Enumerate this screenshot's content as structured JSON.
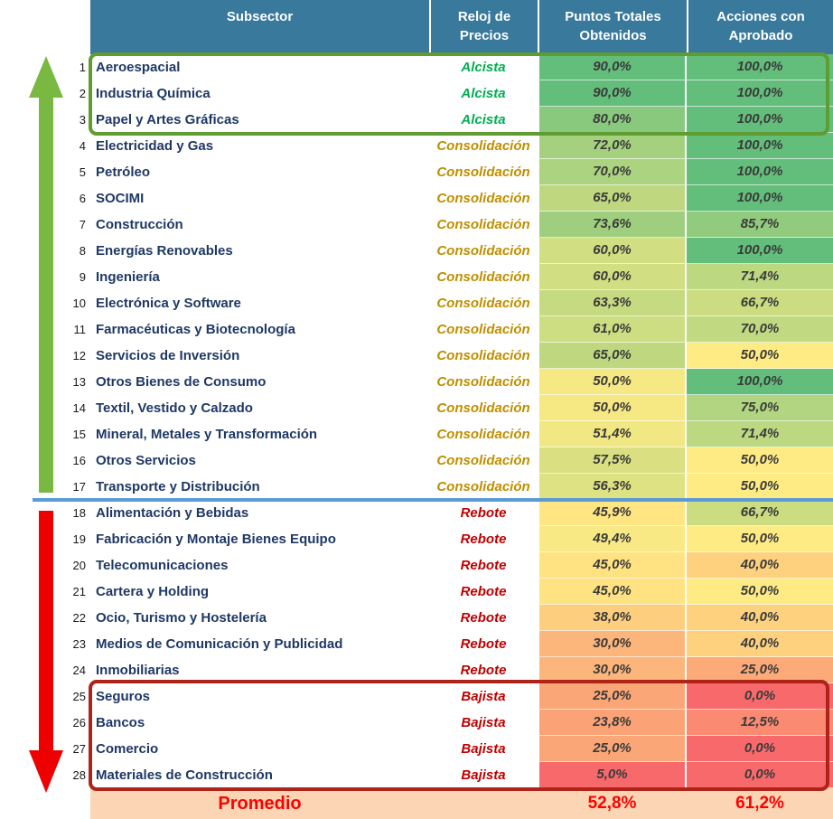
{
  "chart_data": {
    "type": "table",
    "columns": [
      "Subsector",
      "Reloj de Precios",
      "Puntos Totales Obtenidos",
      "Acciones con Aprobado"
    ],
    "rows": [
      {
        "n": 1,
        "name": "Aeroespacial",
        "reloj": "Alcista",
        "puntos": "90,0%",
        "puntos_num": 90.0,
        "acciones": "100,0%",
        "acciones_num": 100.0
      },
      {
        "n": 2,
        "name": "Industria Química",
        "reloj": "Alcista",
        "puntos": "90,0%",
        "puntos_num": 90.0,
        "acciones": "100,0%",
        "acciones_num": 100.0
      },
      {
        "n": 3,
        "name": "Papel y Artes Gráficas",
        "reloj": "Alcista",
        "puntos": "80,0%",
        "puntos_num": 80.0,
        "acciones": "100,0%",
        "acciones_num": 100.0
      },
      {
        "n": 4,
        "name": "Electricidad y Gas",
        "reloj": "Consolidación",
        "puntos": "72,0%",
        "puntos_num": 72.0,
        "acciones": "100,0%",
        "acciones_num": 100.0
      },
      {
        "n": 5,
        "name": "Petróleo",
        "reloj": "Consolidación",
        "puntos": "70,0%",
        "puntos_num": 70.0,
        "acciones": "100,0%",
        "acciones_num": 100.0
      },
      {
        "n": 6,
        "name": "SOCIMI",
        "reloj": "Consolidación",
        "puntos": "65,0%",
        "puntos_num": 65.0,
        "acciones": "100,0%",
        "acciones_num": 100.0
      },
      {
        "n": 7,
        "name": "Construcción",
        "reloj": "Consolidación",
        "puntos": "73,6%",
        "puntos_num": 73.6,
        "acciones": "85,7%",
        "acciones_num": 85.7
      },
      {
        "n": 8,
        "name": "Energías Renovables",
        "reloj": "Consolidación",
        "puntos": "60,0%",
        "puntos_num": 60.0,
        "acciones": "100,0%",
        "acciones_num": 100.0
      },
      {
        "n": 9,
        "name": "Ingeniería",
        "reloj": "Consolidación",
        "puntos": "60,0%",
        "puntos_num": 60.0,
        "acciones": "71,4%",
        "acciones_num": 71.4
      },
      {
        "n": 10,
        "name": "Electrónica y Software",
        "reloj": "Consolidación",
        "puntos": "63,3%",
        "puntos_num": 63.3,
        "acciones": "66,7%",
        "acciones_num": 66.7
      },
      {
        "n": 11,
        "name": "Farmacéuticas y Biotecnología",
        "reloj": "Consolidación",
        "puntos": "61,0%",
        "puntos_num": 61.0,
        "acciones": "70,0%",
        "acciones_num": 70.0
      },
      {
        "n": 12,
        "name": "Servicios de Inversión",
        "reloj": "Consolidación",
        "puntos": "65,0%",
        "puntos_num": 65.0,
        "acciones": "50,0%",
        "acciones_num": 50.0
      },
      {
        "n": 13,
        "name": "Otros Bienes de Consumo",
        "reloj": "Consolidación",
        "puntos": "50,0%",
        "puntos_num": 50.0,
        "acciones": "100,0%",
        "acciones_num": 100.0
      },
      {
        "n": 14,
        "name": "Textil, Vestido y Calzado",
        "reloj": "Consolidación",
        "puntos": "50,0%",
        "puntos_num": 50.0,
        "acciones": "75,0%",
        "acciones_num": 75.0
      },
      {
        "n": 15,
        "name": "Mineral, Metales y Transformación",
        "reloj": "Consolidación",
        "puntos": "51,4%",
        "puntos_num": 51.4,
        "acciones": "71,4%",
        "acciones_num": 71.4
      },
      {
        "n": 16,
        "name": "Otros Servicios",
        "reloj": "Consolidación",
        "puntos": "57,5%",
        "puntos_num": 57.5,
        "acciones": "50,0%",
        "acciones_num": 50.0
      },
      {
        "n": 17,
        "name": "Transporte y Distribución",
        "reloj": "Consolidación",
        "puntos": "56,3%",
        "puntos_num": 56.3,
        "acciones": "50,0%",
        "acciones_num": 50.0
      },
      {
        "n": 18,
        "name": "Alimentación y Bebidas",
        "reloj": "Rebote",
        "puntos": "45,9%",
        "puntos_num": 45.9,
        "acciones": "66,7%",
        "acciones_num": 66.7
      },
      {
        "n": 19,
        "name": "Fabricación y Montaje Bienes Equipo",
        "reloj": "Rebote",
        "puntos": "49,4%",
        "puntos_num": 49.4,
        "acciones": "50,0%",
        "acciones_num": 50.0
      },
      {
        "n": 20,
        "name": "Telecomunicaciones",
        "reloj": "Rebote",
        "puntos": "45,0%",
        "puntos_num": 45.0,
        "acciones": "40,0%",
        "acciones_num": 40.0
      },
      {
        "n": 21,
        "name": "Cartera y Holding",
        "reloj": "Rebote",
        "puntos": "45,0%",
        "puntos_num": 45.0,
        "acciones": "50,0%",
        "acciones_num": 50.0
      },
      {
        "n": 22,
        "name": "Ocio, Turismo y Hostelería",
        "reloj": "Rebote",
        "puntos": "38,0%",
        "puntos_num": 38.0,
        "acciones": "40,0%",
        "acciones_num": 40.0
      },
      {
        "n": 23,
        "name": "Medios de Comunicación y Publicidad",
        "reloj": "Rebote",
        "puntos": "30,0%",
        "puntos_num": 30.0,
        "acciones": "40,0%",
        "acciones_num": 40.0
      },
      {
        "n": 24,
        "name": "Inmobiliarias",
        "reloj": "Rebote",
        "puntos": "30,0%",
        "puntos_num": 30.0,
        "acciones": "25,0%",
        "acciones_num": 25.0
      },
      {
        "n": 25,
        "name": "Seguros",
        "reloj": "Bajista",
        "puntos": "25,0%",
        "puntos_num": 25.0,
        "acciones": "0,0%",
        "acciones_num": 0.0
      },
      {
        "n": 26,
        "name": "Bancos",
        "reloj": "Bajista",
        "puntos": "23,8%",
        "puntos_num": 23.8,
        "acciones": "12,5%",
        "acciones_num": 12.5
      },
      {
        "n": 27,
        "name": "Comercio",
        "reloj": "Bajista",
        "puntos": "25,0%",
        "puntos_num": 25.0,
        "acciones": "0,0%",
        "acciones_num": 0.0
      },
      {
        "n": 28,
        "name": "Materiales de Construcción",
        "reloj": "Bajista",
        "puntos": "5,0%",
        "puntos_num": 5.0,
        "acciones": "0,0%",
        "acciones_num": 0.0
      }
    ],
    "annotations": {
      "green_outline_rows": [
        1,
        3
      ],
      "red_outline_rows": [
        25,
        28
      ],
      "blue_divider_after_row": 17
    }
  },
  "header": {
    "subsector": [
      "Subsector"
    ],
    "reloj": [
      "Reloj de",
      "Precios"
    ],
    "puntos": [
      "Puntos Totales",
      "Obtenidos"
    ],
    "acciones": [
      "Acciones con",
      "Aprobado"
    ]
  },
  "footer": {
    "label": "Promedio",
    "puntos": "52,8%",
    "puntos_num": 52.8,
    "acciones": "61,2%",
    "acciones_num": 61.2
  },
  "status_colors": {
    "Alcista": "#00B050",
    "Consolidación": "#BF8F00",
    "Rebote": "#C00000",
    "Bajista": "#C00000"
  },
  "scale": {
    "puntos": {
      "min": 5,
      "max": 90
    },
    "acciones": {
      "min": 0,
      "max": 100
    },
    "colors": {
      "low": "#F8696B",
      "mid": "#FFEB84",
      "high": "#63BE7B"
    }
  },
  "theme": {
    "header_bg": "#38799C",
    "name_color": "#1F3864",
    "footer_bg": "#FCD5B4",
    "footer_text": "#FF0000",
    "divider_blue": "#5B9BD5",
    "box_green": "#5F9C31",
    "box_red": "#B02318",
    "arrow_up_green": "#79B942",
    "arrow_down_red": "#EE0000"
  }
}
